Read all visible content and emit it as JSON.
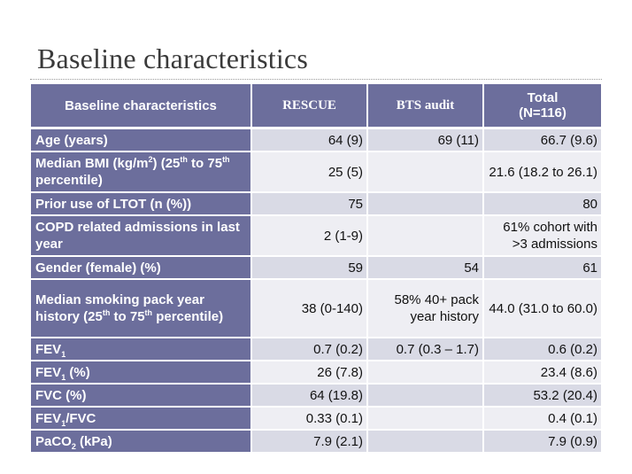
{
  "slide": {
    "title": "Baseline characteristics"
  },
  "table": {
    "headers": {
      "col1": "Baseline characteristics",
      "col2": "RESCUE",
      "col3": "BTS audit",
      "col4_line1": "Total",
      "col4_line2": "(N=116)"
    },
    "rows": [
      {
        "label": "Age (years)",
        "rescue": "64 (9)",
        "bts": "69 (11)",
        "total": "66.7 (9.6)"
      },
      {
        "label_a": "Median BMI (kg/m",
        "label_sup1": "2",
        "label_b": ") (25",
        "label_sup2": "th",
        "label_c": " to 75",
        "label_sup3": "th",
        "label_d": " percentile)",
        "rescue": "25 (5)",
        "bts": "",
        "total": "21.6 (18.2 to 26.1)"
      },
      {
        "label": "Prior use of LTOT (n (%))",
        "rescue": "75",
        "bts": "",
        "total": "80"
      },
      {
        "label": "COPD related admissions in last year",
        "rescue": "2 (1-9)",
        "bts": "",
        "total": "61% cohort with >3 admissions"
      },
      {
        "label": "Gender (female)  (%)",
        "rescue": "59",
        "bts": "54",
        "total": "61"
      },
      {
        "label_a": "Median smoking pack year history (25",
        "label_sup1": "th",
        "label_b": " to 75",
        "label_sup2": "th",
        "label_c": " percentile)",
        "rescue": "38 (0-140)",
        "bts": "58% 40+ pack year history",
        "total": "44.0 (31.0 to 60.0)"
      },
      {
        "label_a": "FEV",
        "label_sub": "1",
        "rescue": "0.7 (0.2)",
        "bts": "0.7 (0.3 – 1.7)",
        "total": "0.6 (0.2)"
      },
      {
        "label_a": "FEV",
        "label_sub": "1",
        "label_b": " (%)",
        "rescue": "26 (7.8)",
        "bts": "",
        "total": "23.4 (8.6)"
      },
      {
        "label": "FVC (%)",
        "rescue": "64 (19.8)",
        "bts": "",
        "total": "53.2 (20.4)"
      },
      {
        "label_a": "FEV",
        "label_sub": "1",
        "label_b": "/FVC",
        "rescue": "0.33 (0.1)",
        "bts": "",
        "total": "0.4 (0.1)"
      },
      {
        "label_a": "PaCO",
        "label_sub": "2",
        "label_b": " (kPa)",
        "rescue": "7.9 (2.1)",
        "bts": "",
        "total": "7.9 (0.9)"
      }
    ]
  },
  "colors": {
    "header_bg": "#6c6e9c",
    "row_odd_bg": "#d9dae5",
    "row_even_bg": "#eeeef3",
    "header_text": "#ffffff"
  }
}
